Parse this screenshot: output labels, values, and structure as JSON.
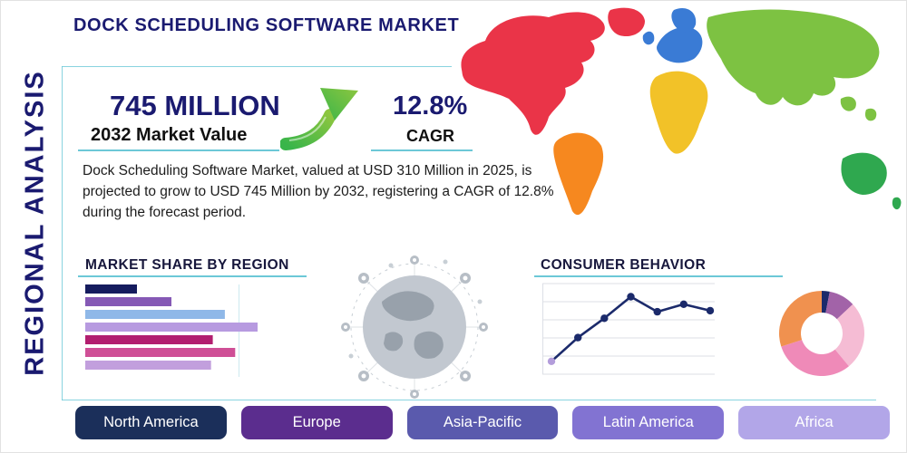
{
  "page": {
    "title": "DOCK SCHEDULING SOFTWARE MARKET",
    "sidebar_label": "REGIONAL ANALYSIS"
  },
  "stats": {
    "market_value": "745 MILLION",
    "market_value_caption": "2032 Market Value",
    "cagr_value": "12.8%",
    "cagr_caption": "CAGR"
  },
  "description": "Dock Scheduling Software Market, valued at USD 310 Million in 2025, is projected to grow to USD 745 Million by 2032, registering a CAGR of 12.8% during the forecast period.",
  "colors": {
    "navy": "#1a1a70",
    "accent_teal": "#6cc8d7",
    "arrow_green_dark": "#39b54a",
    "arrow_green_light": "#8dc63f"
  },
  "regions": [
    {
      "label": "North America",
      "color": "#1b2f5a"
    },
    {
      "label": "Europe",
      "color": "#5b2d8e"
    },
    {
      "label": "Asia-Pacific",
      "color": "#5a5aad"
    },
    {
      "label": "Latin America",
      "color": "#8273d2"
    },
    {
      "label": "Africa",
      "color": "#b2a6e8"
    }
  ],
  "map": {
    "continents": [
      {
        "name": "north-america",
        "color": "#ea3448"
      },
      {
        "name": "south-america",
        "color": "#f6881f"
      },
      {
        "name": "europe",
        "color": "#3a7bd5"
      },
      {
        "name": "africa",
        "color": "#f2c228"
      },
      {
        "name": "asia",
        "color": "#7dc242"
      },
      {
        "name": "australia",
        "color": "#2fa84f"
      }
    ]
  },
  "chart_data": [
    {
      "type": "bar",
      "orientation": "horizontal",
      "title": "MARKET SHARE BY REGION",
      "values": [
        30,
        50,
        81,
        100,
        74,
        87,
        73
      ],
      "colors": [
        "#151c5e",
        "#8559b5",
        "#8fb8e8",
        "#b79ae0",
        "#b21e6f",
        "#cf4f96",
        "#c29fdd"
      ],
      "xlim": [
        0,
        100
      ],
      "grid": false,
      "note": "bars unlabeled in source image"
    },
    {
      "type": "line",
      "title": "CONSUMER BEHAVIOR",
      "x": [
        1,
        2,
        3,
        4,
        5,
        6,
        7
      ],
      "values": [
        1.2,
        3.4,
        5.2,
        7.2,
        5.8,
        6.5,
        5.9
      ],
      "ylim": [
        0,
        8
      ],
      "color": "#1b2a6b",
      "first_point_color": "#b39ddb",
      "grid": true,
      "legend": "none"
    },
    {
      "type": "pie",
      "donut": true,
      "labels": [
        "navy",
        "plum",
        "light-pink",
        "pink",
        "orange"
      ],
      "values": [
        3,
        10,
        26,
        31,
        30
      ],
      "colors": [
        "#1b2a6b",
        "#a263a8",
        "#f5bcd4",
        "#ef8ab8",
        "#f0914f"
      ],
      "legend": "none"
    }
  ]
}
